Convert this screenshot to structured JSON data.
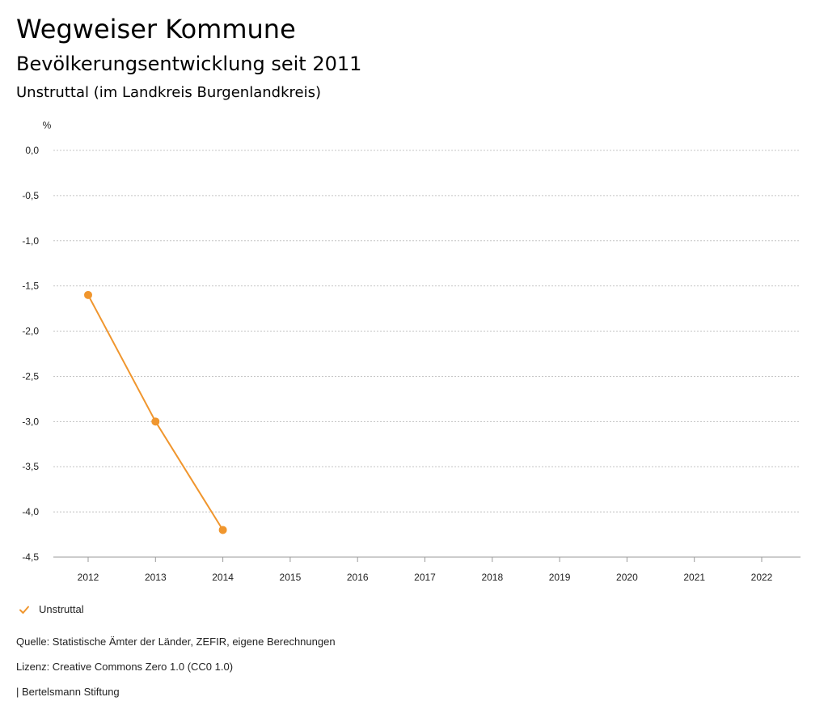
{
  "header": {
    "title": "Wegweiser Kommune",
    "subtitle": "Bevölkerungsentwicklung seit 2011",
    "region": "Unstruttal (im Landkreis Burgenlandkreis)"
  },
  "chart_data": {
    "type": "line",
    "title": "Bevölkerungsentwicklung seit 2011",
    "xlabel": "",
    "ylabel": "%",
    "categories": [
      "2012",
      "2013",
      "2014",
      "2015",
      "2016",
      "2017",
      "2018",
      "2019",
      "2020",
      "2021",
      "2022"
    ],
    "yticks": [
      0.0,
      -0.5,
      -1.0,
      -1.5,
      -2.0,
      -2.5,
      -3.0,
      -3.5,
      -4.0,
      -4.5
    ],
    "ytick_labels": [
      "0,0",
      "-0,5",
      "-1,0",
      "-1,5",
      "-2,0",
      "-2,5",
      "-3,0",
      "-3,5",
      "-4,0",
      "-4,5"
    ],
    "ylim": [
      -4.5,
      0.0
    ],
    "grid": true,
    "series": [
      {
        "name": "Unstruttal",
        "color": "#f0962e",
        "values": [
          -1.6,
          -3.0,
          -4.2,
          null,
          null,
          null,
          null,
          null,
          null,
          null,
          null
        ]
      }
    ]
  },
  "legend": {
    "items": [
      {
        "label": "Unstruttal",
        "color": "#f0962e"
      }
    ]
  },
  "footer": {
    "source": "Quelle: Statistische Ämter der Länder, ZEFIR, eigene Berechnungen",
    "license": "Lizenz: Creative Commons Zero 1.0 (CC0 1.0)",
    "brand": "| Bertelsmann Stiftung"
  }
}
